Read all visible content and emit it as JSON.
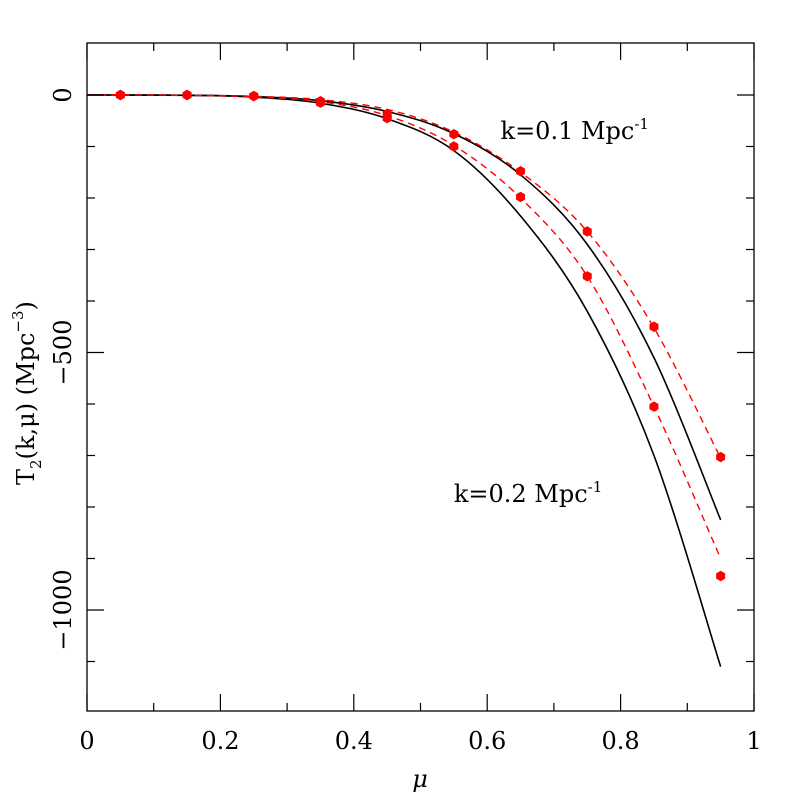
{
  "chart_data": {
    "type": "line",
    "xlabel": "μ",
    "ylabel": {
      "main": "T",
      "sub": "2",
      "rest": "(k,μ)  (Mpc",
      "sup": "−3",
      "close": ")"
    },
    "xlim": [
      0,
      1
    ],
    "ylim": [
      -1200,
      100
    ],
    "x_ticks": [
      {
        "value": 0,
        "label": "0"
      },
      {
        "value": 0.2,
        "label": "0.2"
      },
      {
        "value": 0.4,
        "label": "0.4"
      },
      {
        "value": 0.6,
        "label": "0.6"
      },
      {
        "value": 0.8,
        "label": "0.8"
      },
      {
        "value": 1,
        "label": "1"
      }
    ],
    "y_ticks": [
      {
        "value": 0,
        "label": "0"
      },
      {
        "value": -500,
        "label": "−500"
      },
      {
        "value": -1000,
        "label": "−1000"
      }
    ],
    "x_minor_step": 0.1,
    "y_minor_step": 100,
    "series": [
      {
        "label": "k=0.1 Mpc-1",
        "style": "solid",
        "color": "#000000",
        "x": [
          0,
          0.05,
          0.15,
          0.25,
          0.35,
          0.45,
          0.55,
          0.65,
          0.75,
          0.85,
          0.95
        ],
        "y": [
          0,
          0,
          -0.5,
          -3,
          -11,
          -32,
          -75,
          -155,
          -290,
          -510,
          -825
        ]
      },
      {
        "label": "k=0.1 Mpc-1",
        "style": "dashed",
        "color": "#ff0000",
        "x": [
          0,
          0.05,
          0.15,
          0.25,
          0.35,
          0.45,
          0.55,
          0.65,
          0.75,
          0.85,
          0.95
        ],
        "y": [
          0,
          0,
          -0.5,
          -2.5,
          -9,
          -28,
          -72,
          -150,
          -265,
          -452,
          -705
        ]
      },
      {
        "label": "k=0.2 Mpc-1",
        "style": "solid",
        "color": "#000000",
        "x": [
          0,
          0.05,
          0.15,
          0.25,
          0.35,
          0.45,
          0.55,
          0.65,
          0.75,
          0.85,
          0.95
        ],
        "y": [
          0,
          0,
          -0.6,
          -4,
          -16,
          -46,
          -108,
          -235,
          -420,
          -700,
          -1110
        ]
      },
      {
        "label": "k=0.2 Mpc-1",
        "style": "dashed",
        "color": "#ff0000",
        "x": [
          0,
          0.05,
          0.15,
          0.25,
          0.35,
          0.45,
          0.55,
          0.65,
          0.75,
          0.85,
          0.95
        ],
        "y": [
          0,
          0,
          -0.6,
          -3.5,
          -13,
          -40,
          -98,
          -200,
          -352,
          -605,
          -900
        ]
      }
    ],
    "markers": [
      {
        "label": "k=0.1 Mpc-1",
        "color": "#ff0000",
        "x": [
          0.05,
          0.15,
          0.25,
          0.35,
          0.45,
          0.55,
          0.65,
          0.75,
          0.85,
          0.95
        ],
        "y": [
          0,
          0,
          -2,
          -12,
          -37,
          -76,
          -148,
          -265,
          -450,
          -703
        ]
      },
      {
        "label": "k=0.2 Mpc-1",
        "color": "#ff0000",
        "x": [
          0.05,
          0.15,
          0.25,
          0.35,
          0.45,
          0.55,
          0.65,
          0.75,
          0.85,
          0.95
        ],
        "y": [
          0,
          0,
          -2,
          -15,
          -45,
          -100,
          -198,
          -352,
          -605,
          -934
        ]
      }
    ],
    "annotations": [
      {
        "text": "k=0.1  Mpc",
        "sup": "-1",
        "x": 0.62,
        "y": -85
      },
      {
        "text": "k=0.2  Mpc",
        "sup": "-1",
        "x": 0.55,
        "y": -790
      }
    ],
    "grid": false,
    "legend": "none"
  }
}
